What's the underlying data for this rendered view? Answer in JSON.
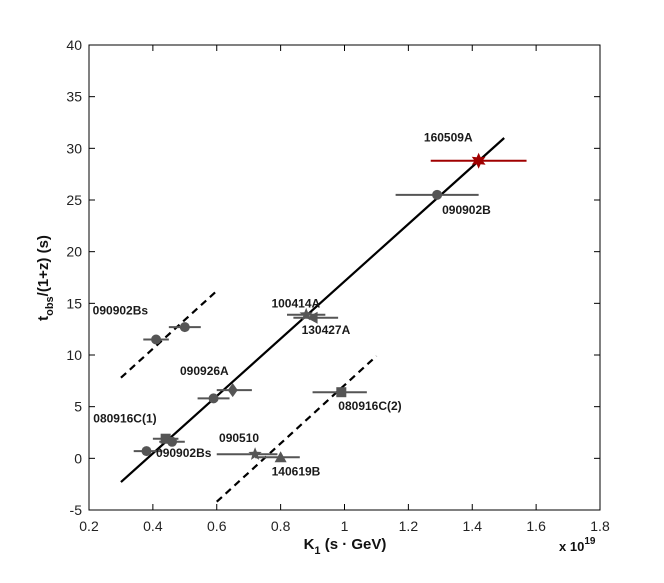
{
  "chart_data": {
    "type": "scatter",
    "xlabel": {
      "main": "K",
      "sub": "1",
      "rest": " (s · GeV)"
    },
    "ylabel": {
      "main": "t",
      "sub": "obs",
      "rest": "/(1+z) (s)"
    },
    "x_exponent_label": "x 10",
    "x_exponent_power": "19",
    "xlim": [
      0.2,
      1.8
    ],
    "ylim": [
      -5,
      40
    ],
    "xticks": [
      "0.2",
      "0.4",
      "0.6",
      "0.8",
      "1",
      "1.2",
      "1.4",
      "1.6",
      "1.8"
    ],
    "yticks": [
      "-5",
      "0",
      "5",
      "10",
      "15",
      "20",
      "25",
      "30",
      "35",
      "40"
    ],
    "points": [
      {
        "label": "160509A",
        "x": 1.42,
        "y": 28.8,
        "xerr": [
          1.27,
          1.57
        ],
        "marker": "star6",
        "color": "#a00000"
      },
      {
        "label": "090902B",
        "x": 1.29,
        "y": 25.5,
        "xerr": [
          1.16,
          1.42
        ],
        "marker": "circle",
        "color": "#555555"
      },
      {
        "label": "100414A",
        "x": 0.88,
        "y": 13.9,
        "xerr": [
          0.82,
          0.94
        ],
        "marker": "star5",
        "color": "#555555"
      },
      {
        "label": "130427A",
        "x": 0.9,
        "y": 13.6,
        "xerr": [
          0.84,
          0.98
        ],
        "marker": "triangle-left",
        "color": "#555555"
      },
      {
        "label": "090902Bs",
        "x": 0.41,
        "y": 11.5,
        "xerr": [
          0.37,
          0.45
        ],
        "marker": "circle",
        "color": "#555555"
      },
      {
        "label": "",
        "x": 0.5,
        "y": 12.7,
        "xerr": [
          0.45,
          0.55
        ],
        "marker": "circle",
        "color": "#555555"
      },
      {
        "label": "090926A",
        "x": 0.65,
        "y": 6.6,
        "xerr": [
          0.6,
          0.71
        ],
        "marker": "diamond",
        "color": "#555555"
      },
      {
        "label": "",
        "x": 0.59,
        "y": 5.8,
        "xerr": [
          0.54,
          0.64
        ],
        "marker": "circle",
        "color": "#555555"
      },
      {
        "label": "080916C(2)",
        "x": 0.99,
        "y": 6.4,
        "xerr": [
          0.9,
          1.07
        ],
        "marker": "square",
        "color": "#555555"
      },
      {
        "label": "080916C(1)",
        "x": 0.44,
        "y": 1.9,
        "xerr": [
          0.4,
          0.48
        ],
        "marker": "square",
        "color": "#555555"
      },
      {
        "label": "090902Bs",
        "x": 0.46,
        "y": 1.6,
        "xerr": [
          0.42,
          0.5
        ],
        "marker": "circle",
        "color": "#555555"
      },
      {
        "label": "",
        "x": 0.38,
        "y": 0.7,
        "xerr": [
          0.34,
          0.43
        ],
        "marker": "circle",
        "color": "#555555"
      },
      {
        "label": "090510",
        "x": 0.72,
        "y": 0.4,
        "xerr": [
          0.6,
          0.79
        ],
        "marker": "star5",
        "color": "#555555"
      },
      {
        "label": "140619B",
        "x": 0.8,
        "y": 0.1,
        "xerr": [
          0.72,
          0.86
        ],
        "marker": "triangle-up",
        "color": "#555555"
      }
    ],
    "lines": [
      {
        "style": "solid",
        "x": [
          0.3,
          1.5
        ],
        "y": [
          -2.3,
          31.0
        ]
      },
      {
        "style": "dashed",
        "x": [
          0.3,
          0.6
        ],
        "y": [
          7.8,
          16.2
        ]
      },
      {
        "style": "dashed",
        "x": [
          0.6,
          1.1
        ],
        "y": [
          -4.2,
          9.9
        ]
      }
    ]
  }
}
